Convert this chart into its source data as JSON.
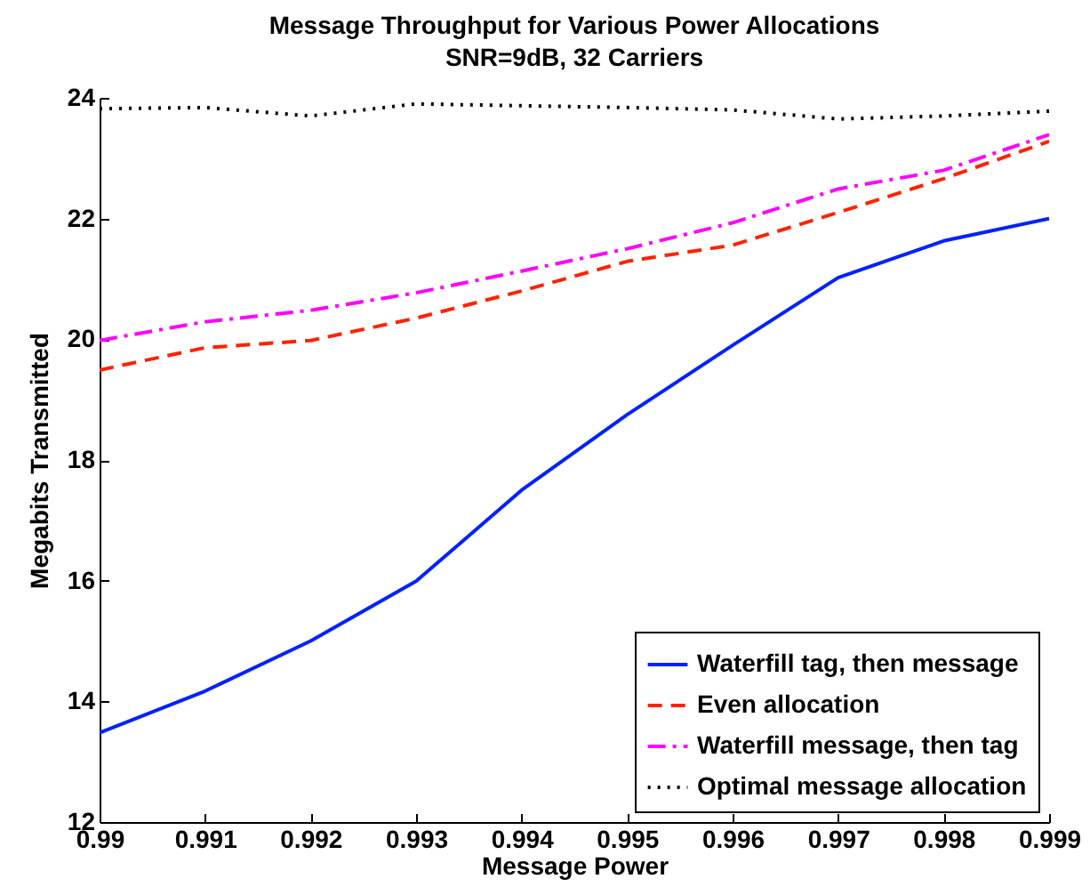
{
  "chart_data": {
    "type": "line",
    "title": "Message Throughput for Various Power Allocations",
    "subtitle": "SNR=9dB, 32 Carriers",
    "xlabel": "Message Power",
    "ylabel": "Megabits Transmitted",
    "x": [
      0.99,
      0.991,
      0.992,
      0.993,
      0.994,
      0.995,
      0.996,
      0.997,
      0.998,
      0.999
    ],
    "series": [
      {
        "name": "Waterfill tag, then message",
        "color": "#0022ff",
        "line_style": "solid",
        "values": [
          13.48,
          14.17,
          15.0,
          15.99,
          17.5,
          18.75,
          19.9,
          21.02,
          21.63,
          22.0
        ]
      },
      {
        "name": "Even allocation",
        "color": "#ff2200",
        "line_style": "dashed",
        "values": [
          19.49,
          19.86,
          19.98,
          20.35,
          20.8,
          21.29,
          21.56,
          22.1,
          22.66,
          23.28
        ]
      },
      {
        "name": "Waterfill message, then tag",
        "color": "#ff00ff",
        "line_style": "dashdot",
        "values": [
          19.98,
          20.29,
          20.48,
          20.77,
          21.13,
          21.5,
          21.93,
          22.49,
          22.8,
          23.39
        ]
      },
      {
        "name": "Optimal message allocation",
        "color": "#000000",
        "line_style": "dotted",
        "values": [
          23.82,
          23.84,
          23.7,
          23.9,
          23.87,
          23.84,
          23.8,
          23.65,
          23.7,
          23.78
        ]
      }
    ],
    "xlim": [
      0.99,
      0.999
    ],
    "xticks": [
      0.99,
      0.991,
      0.992,
      0.993,
      0.994,
      0.995,
      0.996,
      0.997,
      0.998,
      0.999
    ],
    "ylim": [
      12,
      24
    ],
    "yticks": [
      12,
      14,
      16,
      18,
      20,
      22,
      24
    ],
    "grid": false,
    "legend": "bottom right",
    "marker": "none"
  }
}
